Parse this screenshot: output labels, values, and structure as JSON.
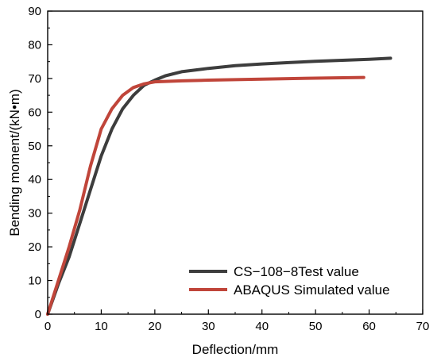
{
  "chart_data": {
    "type": "line",
    "title": "",
    "xlabel": "Deflection/mm",
    "ylabel": "Bending moment/(kN•m)",
    "xlim": [
      0,
      70
    ],
    "ylim": [
      0,
      90
    ],
    "xticks": [
      0,
      10,
      20,
      30,
      40,
      50,
      60,
      70
    ],
    "yticks": [
      0,
      10,
      20,
      30,
      40,
      50,
      60,
      70,
      80,
      90
    ],
    "grid": false,
    "legend_position": "bottom-right",
    "series": [
      {
        "name": "CS−108−8Test value",
        "color": "#3d3d3d",
        "points": [
          [
            0,
            0
          ],
          [
            2,
            9
          ],
          [
            4,
            17
          ],
          [
            6,
            27
          ],
          [
            8,
            37
          ],
          [
            10,
            47
          ],
          [
            12,
            55
          ],
          [
            14,
            61
          ],
          [
            16,
            65
          ],
          [
            18,
            68
          ],
          [
            20,
            69.5
          ],
          [
            22,
            70.8
          ],
          [
            25,
            72
          ],
          [
            30,
            73
          ],
          [
            35,
            73.8
          ],
          [
            40,
            74.3
          ],
          [
            45,
            74.7
          ],
          [
            50,
            75.1
          ],
          [
            55,
            75.4
          ],
          [
            60,
            75.7
          ],
          [
            64,
            76
          ]
        ]
      },
      {
        "name": "ABAQUS Simulated value",
        "color": "#c0453a",
        "points": [
          [
            0,
            0
          ],
          [
            2,
            10
          ],
          [
            4,
            20
          ],
          [
            6,
            31
          ],
          [
            8,
            44
          ],
          [
            10,
            55
          ],
          [
            12,
            61
          ],
          [
            14,
            65
          ],
          [
            16,
            67.3
          ],
          [
            18,
            68.4
          ],
          [
            20,
            69
          ],
          [
            25,
            69.3
          ],
          [
            30,
            69.5
          ],
          [
            40,
            69.8
          ],
          [
            50,
            70.1
          ],
          [
            59,
            70.3
          ]
        ]
      }
    ]
  }
}
